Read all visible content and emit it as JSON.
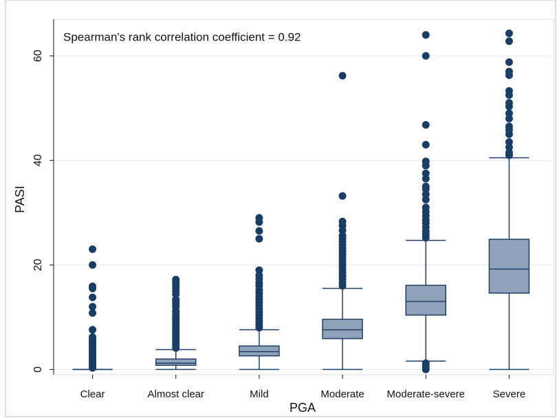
{
  "chart_data": {
    "type": "box",
    "annotation": "Spearman's rank correlation coefficient = 0.92",
    "x_label": "PGA",
    "y_label": "PASI",
    "categories": [
      "Clear",
      "Almost clear",
      "Mild",
      "Moderate",
      "Moderate-severe",
      "Severe"
    ],
    "ylim": [
      -1,
      67
    ],
    "yticks": [
      0,
      20,
      40,
      60
    ],
    "grid": true,
    "box_color": "#8ea3ba",
    "line_color": "#1f3f66",
    "outlier_color": "#1a3d63",
    "boxes": [
      {
        "min": 0,
        "q1": 0,
        "median": 0,
        "q3": 0,
        "max": 0,
        "outliers": [
          23,
          20,
          15.9,
          15.5,
          13.8,
          12,
          10.8,
          7.6,
          6.2,
          5.8,
          5.4,
          5,
          4.6,
          4.2,
          3.8,
          3.4,
          3,
          2.6,
          2.2,
          1.8,
          1.4,
          1,
          0.6,
          0.3
        ]
      },
      {
        "min": 0,
        "q1": 0.8,
        "median": 1.2,
        "q3": 2,
        "max": 3.8,
        "outliers": [
          17.2,
          16.8,
          16.2,
          15.6,
          15,
          14.4,
          13.4,
          13,
          12.5,
          12,
          11.2,
          10.6,
          10,
          9.5,
          9,
          8.5,
          8,
          7.5,
          7,
          6.5,
          6,
          5.5,
          5,
          4.5,
          4.1
        ]
      },
      {
        "min": 0,
        "q1": 2.6,
        "median": 3.4,
        "q3": 4.5,
        "max": 7.6,
        "outliers": [
          29,
          28.2,
          26.5,
          25,
          19,
          18,
          17.4,
          16.6,
          16,
          15.2,
          14.6,
          14,
          13.4,
          12.8,
          12.2,
          11.6,
          11,
          10.4,
          9.8,
          9.2,
          8.6,
          8
        ]
      },
      {
        "min": 0,
        "q1": 5.9,
        "median": 7.6,
        "q3": 9.6,
        "max": 15.5,
        "outliers": [
          56.2,
          33.2,
          28.3,
          27.5,
          26.6,
          25.6,
          25,
          24.4,
          23.8,
          23.2,
          22.6,
          22,
          21.4,
          20.8,
          20.2,
          19.6,
          19,
          18.4,
          17.8,
          17.2,
          16.6,
          16
        ]
      },
      {
        "min": 1.6,
        "q1": 10.4,
        "median": 13,
        "q3": 16.1,
        "max": 24.7,
        "outliers": [
          64,
          60,
          46.8,
          43,
          39.8,
          39,
          37.5,
          36.5,
          35,
          34.5,
          33.5,
          32.5,
          31,
          30.2,
          29.4,
          28.6,
          28,
          27.2,
          26.4,
          25.8,
          25.2,
          1.2,
          0.8,
          0.4,
          0
        ]
      },
      {
        "min": 0,
        "q1": 14.6,
        "median": 19.2,
        "q3": 24.9,
        "max": 40.5,
        "outliers": [
          64.3,
          62.8,
          58.8,
          57,
          56.3,
          53.3,
          52.5,
          51,
          50.3,
          49,
          48,
          46.5,
          45.8,
          45,
          43.5,
          42.5,
          41.5,
          41
        ]
      }
    ]
  }
}
